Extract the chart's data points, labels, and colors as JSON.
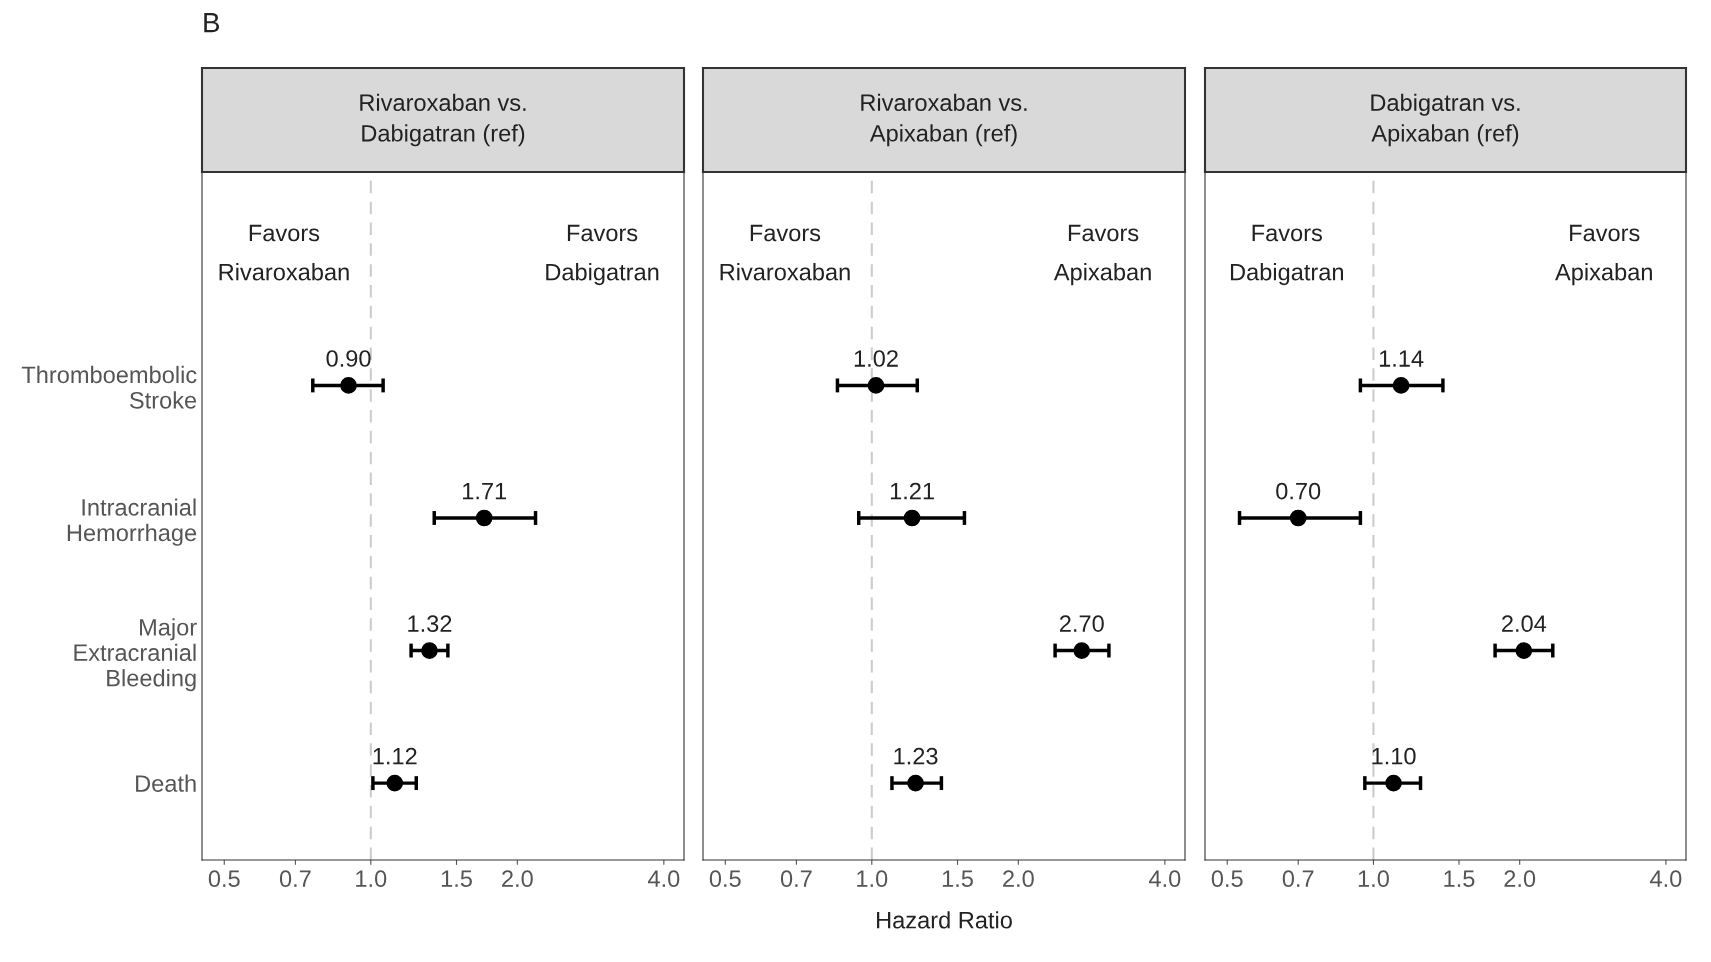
{
  "chart_data": [
    {
      "type": "scatter",
      "orientation": "horizontal",
      "title": "Rivaroxaban vs.\nDabigatran (ref)",
      "categories": [
        "Thromboembolic\nStroke",
        "Intracranial\nHemorrhage",
        "Major\nExtracranial\nBleeding",
        "Death"
      ],
      "values": [
        0.9,
        1.71,
        1.32,
        1.12
      ],
      "errors": [
        [
          0.76,
          1.06
        ],
        [
          1.35,
          2.18
        ],
        [
          1.21,
          1.44
        ],
        [
          1.01,
          1.24
        ]
      ],
      "value_labels": [
        "0.90",
        "1.71",
        "1.32",
        "1.12"
      ],
      "color": "#000000",
      "marker": "circle",
      "log": "x",
      "xlim": [
        0.45,
        4.4
      ],
      "xticks": [
        0.5,
        0.7,
        {
          "value": 1,
          "label": "1.0"
        },
        1.5,
        {
          "value": 2,
          "label": "2.0"
        },
        {
          "value": 4,
          "label": "4.0"
        }
      ],
      "ref_lines": [
        {
          "axis": "x",
          "value": 1,
          "color": "#cccccc",
          "line_style": "dashed"
        }
      ],
      "annotations": [
        "Favors\nRivaroxaban",
        "Favors\nDabigatran",
        "B"
      ],
      "grid": false
    },
    {
      "type": "scatter",
      "orientation": "horizontal",
      "title": "Rivaroxaban vs.\nApixaban (ref)",
      "values": [
        1.02,
        1.21,
        2.7,
        1.23
      ],
      "errors": [
        [
          0.85,
          1.24
        ],
        [
          0.94,
          1.55
        ],
        [
          2.38,
          3.07
        ],
        [
          1.1,
          1.39
        ]
      ],
      "value_labels": [
        "1.02",
        "1.21",
        "2.70",
        "1.23"
      ],
      "color": "#000000",
      "marker": "circle",
      "log": "x",
      "xlim": [
        0.45,
        4.4
      ],
      "xticks": [
        0.5,
        0.7,
        {
          "value": 1,
          "label": "1.0"
        },
        1.5,
        {
          "value": 2,
          "label": "2.0"
        },
        {
          "value": 4,
          "label": "4.0"
        }
      ],
      "ref_lines": [
        {
          "axis": "x",
          "value": 1,
          "color": "#cccccc",
          "line_style": "dashed"
        }
      ],
      "annotations": [
        "Favors\nRivaroxaban",
        "Favors\nApixaban"
      ],
      "xlabel": "Hazard Ratio",
      "tick_labels": "x",
      "grid": false
    },
    {
      "type": "scatter",
      "orientation": "horizontal",
      "title": "Dabigatran vs.\nApixaban (ref)",
      "values": [
        1.14,
        0.7,
        2.04,
        1.1
      ],
      "errors": [
        [
          0.94,
          1.39
        ],
        [
          0.53,
          0.94
        ],
        [
          1.78,
          2.34
        ],
        [
          0.96,
          1.25
        ]
      ],
      "value_labels": [
        "1.14",
        "0.70",
        "2.04",
        "1.10"
      ],
      "color": "#000000",
      "marker": "circle",
      "log": "x",
      "xlim": [
        0.45,
        4.4
      ],
      "xticks": [
        0.5,
        0.7,
        {
          "value": 1,
          "label": "1.0"
        },
        1.5,
        {
          "value": 2,
          "label": "2.0"
        },
        {
          "value": 4,
          "label": "4.0"
        }
      ],
      "ref_lines": [
        {
          "axis": "x",
          "value": 1,
          "color": "#cccccc",
          "line_style": "dashed"
        }
      ],
      "annotations": [
        "Favors\nDabigatran",
        "Favors\nApixaban"
      ],
      "tick_labels": "x",
      "grid": false
    }
  ]
}
